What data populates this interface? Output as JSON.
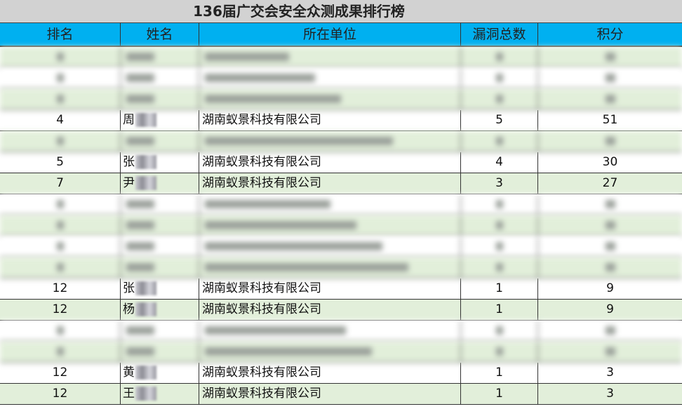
{
  "title": "136届广交会安全众测成果排行榜",
  "columns": [
    "排名",
    "姓名",
    "所在单位",
    "漏洞总数",
    "积分"
  ],
  "colors": {
    "header_bg": "#00b0f0",
    "title_bg": "#d2d2d2",
    "row_alt": "#e2efda"
  },
  "rows": [
    {
      "blurred": true
    },
    {
      "blurred": true
    },
    {
      "blurred": true
    },
    {
      "rank": "4",
      "surname": "周",
      "org": "湖南蚁景科技有限公司",
      "vulns": "5",
      "score": "51"
    },
    {
      "blurred": true
    },
    {
      "rank": "5",
      "surname": "张",
      "org": "湖南蚁景科技有限公司",
      "vulns": "4",
      "score": "30"
    },
    {
      "rank": "7",
      "surname": "尹",
      "org": "湖南蚁景科技有限公司",
      "vulns": "3",
      "score": "27"
    },
    {
      "blurred": true
    },
    {
      "blurred": true
    },
    {
      "blurred": true
    },
    {
      "blurred": true
    },
    {
      "rank": "12",
      "surname": "张",
      "org": "湖南蚁景科技有限公司",
      "vulns": "1",
      "score": "9"
    },
    {
      "rank": "12",
      "surname": "杨",
      "org": "湖南蚁景科技有限公司",
      "vulns": "1",
      "score": "9"
    },
    {
      "blurred": true
    },
    {
      "blurred": true
    },
    {
      "rank": "12",
      "surname": "黄",
      "org": "湖南蚁景科技有限公司",
      "vulns": "1",
      "score": "3"
    },
    {
      "rank": "12",
      "surname": "王",
      "org": "湖南蚁景科技有限公司",
      "vulns": "1",
      "score": "3"
    }
  ]
}
